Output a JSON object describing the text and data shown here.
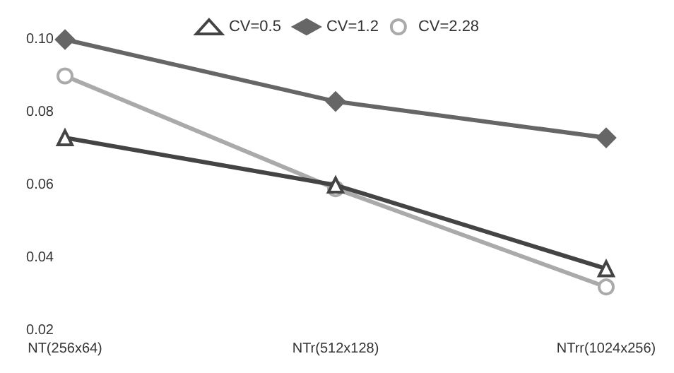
{
  "chart_data": {
    "type": "line",
    "categories": [
      "NT(256x64)",
      "NTr(512x128)",
      "NTrr(1024x256)"
    ],
    "series": [
      {
        "name": "CV=0.5",
        "color": "#444444",
        "marker": "triangle",
        "values": [
          0.073,
          0.06,
          0.037
        ]
      },
      {
        "name": "CV=1.2",
        "color": "#666666",
        "marker": "diamond",
        "values": [
          0.1,
          0.083,
          0.073
        ]
      },
      {
        "name": "CV=2.28",
        "color": "#aaaaaa",
        "marker": "circle",
        "values": [
          0.09,
          0.059,
          0.032
        ]
      }
    ],
    "ylim": [
      0.02,
      0.1
    ],
    "yticks": [
      0.02,
      0.04,
      0.06,
      0.08,
      {
        "value": 0.1,
        "label": "0.10"
      }
    ],
    "grid": false,
    "legend": "top"
  }
}
